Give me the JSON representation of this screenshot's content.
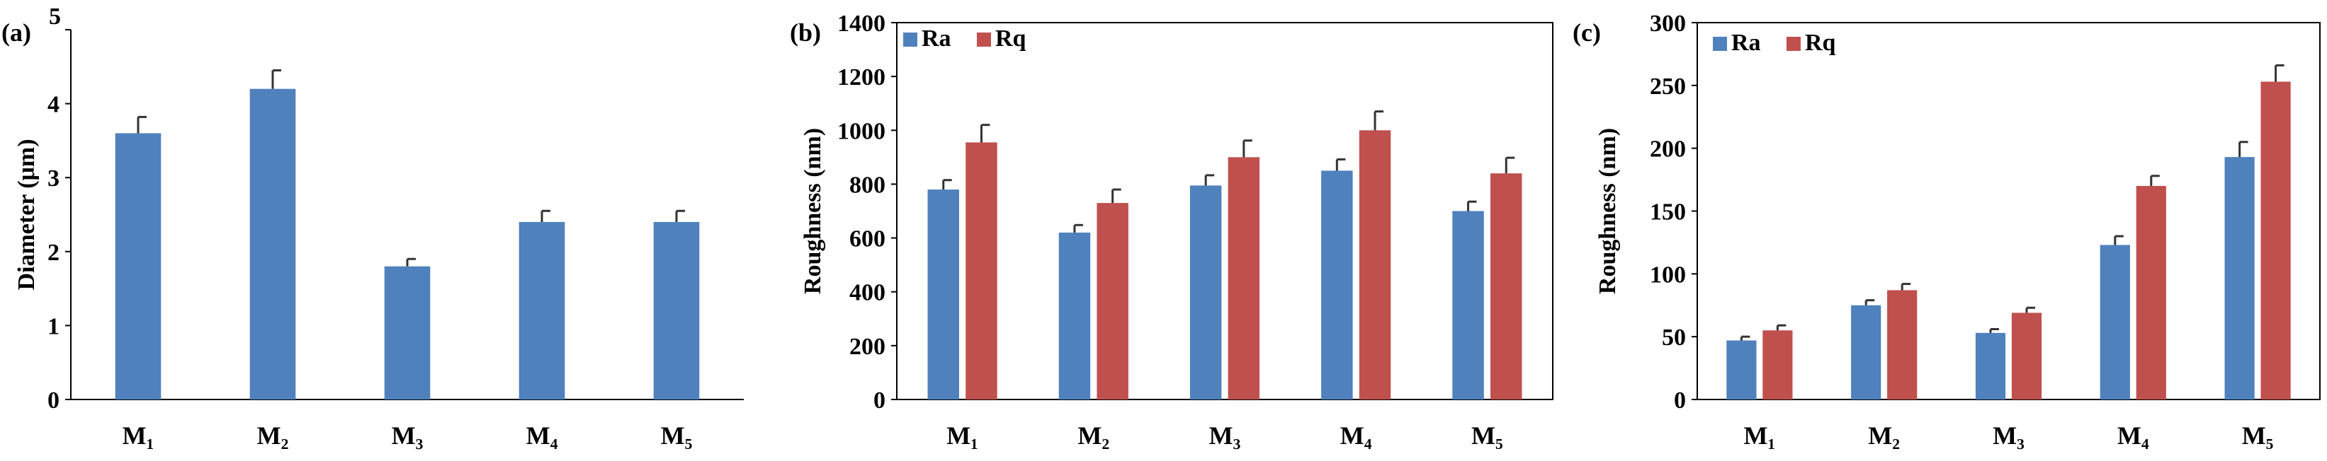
{
  "figure": {
    "panels": [
      "a",
      "b",
      "c"
    ]
  },
  "chart_data": [
    {
      "type": "bar",
      "panel_label": "(a)",
      "title": "",
      "xlabel": "",
      "ylabel": "Diameter (μm)",
      "ylim": [
        0,
        5
      ],
      "yticks": [
        "0",
        "1",
        "2",
        "3",
        "4",
        "5"
      ],
      "grid": false,
      "legend": null,
      "categories": [
        "M₁",
        "M₂",
        "M₃",
        "M₄",
        "M₅"
      ],
      "series": [
        {
          "name": "Diameter",
          "color": "#4F81BD",
          "values": [
            3.6,
            4.2,
            1.8,
            2.4,
            2.4
          ],
          "errors": [
            0.22,
            0.25,
            0.1,
            0.15,
            0.15
          ]
        }
      ]
    },
    {
      "type": "bar",
      "panel_label": "(b)",
      "title": "",
      "xlabel": "",
      "ylabel": "Roughness (nm)",
      "ylim": [
        0,
        1400
      ],
      "yticks": [
        "0",
        "200",
        "400",
        "600",
        "800",
        "1000",
        "1200",
        "1400"
      ],
      "grid": false,
      "legend": "top-left",
      "categories": [
        "M₁",
        "M₂",
        "M₃",
        "M₄",
        "M₅"
      ],
      "series": [
        {
          "name": "Ra",
          "color": "#4F81BD",
          "values": [
            780,
            620,
            795,
            850,
            700
          ],
          "errors": [
            35,
            28,
            38,
            42,
            35
          ]
        },
        {
          "name": "Rq",
          "color": "#C0504D",
          "values": [
            955,
            730,
            900,
            1000,
            840
          ],
          "errors": [
            65,
            50,
            62,
            70,
            58
          ]
        }
      ]
    },
    {
      "type": "bar",
      "panel_label": "(c)",
      "title": "",
      "xlabel": "",
      "ylabel": "Roughness (nm)",
      "ylim": [
        0,
        300
      ],
      "yticks": [
        "0",
        "50",
        "100",
        "150",
        "200",
        "250",
        "300"
      ],
      "grid": false,
      "legend": "top-left",
      "categories": [
        "M₁",
        "M₂",
        "M₃",
        "M₄",
        "M₅"
      ],
      "series": [
        {
          "name": "Ra",
          "color": "#4F81BD",
          "values": [
            47,
            75,
            53,
            123,
            193
          ],
          "errors": [
            3,
            4,
            3,
            7,
            12
          ]
        },
        {
          "name": "Rq",
          "color": "#C0504D",
          "values": [
            55,
            87,
            69,
            170,
            253
          ],
          "errors": [
            4,
            5,
            4,
            8,
            13
          ]
        }
      ]
    }
  ]
}
